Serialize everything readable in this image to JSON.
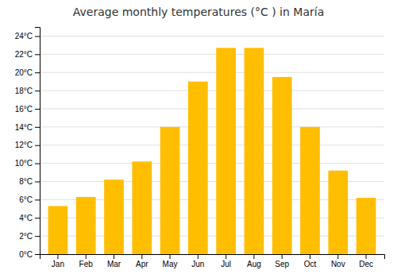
{
  "chart_data": {
    "type": "bar",
    "title": "Average monthly temperatures (°C ) in María",
    "categories": [
      "Jan",
      "Feb",
      "Mar",
      "Apr",
      "May",
      "Jun",
      "Jul",
      "Aug",
      "Sep",
      "Oct",
      "Nov",
      "Dec"
    ],
    "values": [
      5.3,
      6.3,
      8.2,
      10.2,
      14.0,
      19.0,
      22.7,
      22.7,
      19.5,
      14.0,
      9.2,
      6.2
    ],
    "color": "#FFBE00",
    "ylim": [
      0,
      25
    ],
    "yticks": [
      {
        "value": 0,
        "label": "0°C"
      },
      {
        "value": 2,
        "label": "2°C"
      },
      {
        "value": 4,
        "label": "4°C"
      },
      {
        "value": 6,
        "label": "6°C"
      },
      {
        "value": 8,
        "label": "8°C"
      },
      {
        "value": 10,
        "label": "10°C"
      },
      {
        "value": 12,
        "label": "12°C"
      },
      {
        "value": 14,
        "label": "14°C"
      },
      {
        "value": 16,
        "label": "16°C"
      },
      {
        "value": 18,
        "label": "18°C"
      },
      {
        "value": 20,
        "label": "20°C"
      },
      {
        "value": 22,
        "label": "22°C"
      },
      {
        "value": 24,
        "label": "24°C"
      }
    ],
    "grid": true
  }
}
